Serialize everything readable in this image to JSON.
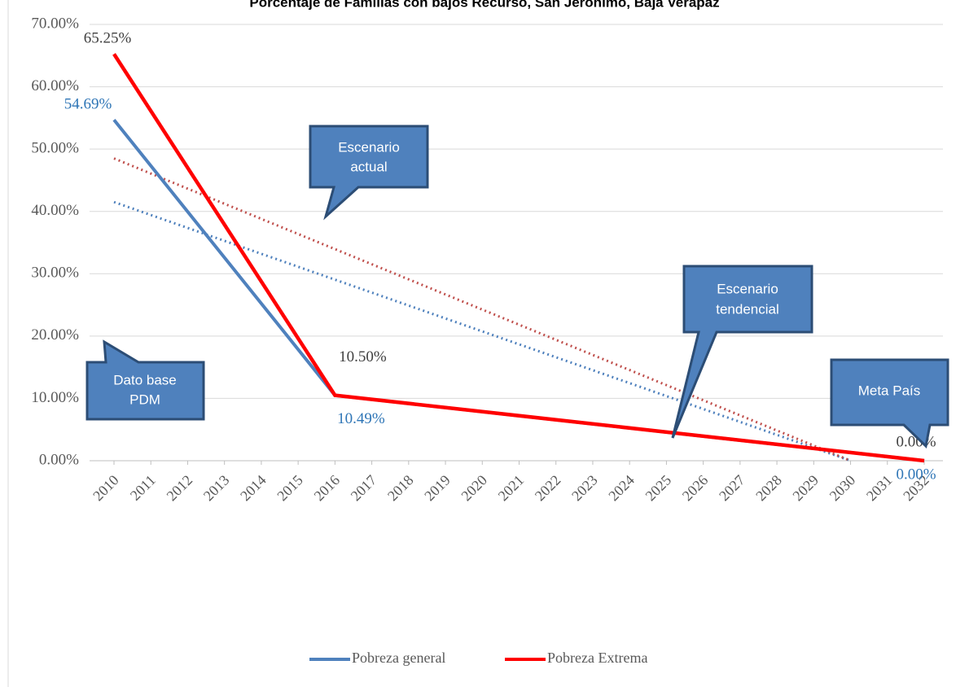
{
  "chart_data": {
    "type": "line",
    "title": "Porcentaje de Familias con bajos Recurso, San Jerónimo, Baja Verapaz",
    "x": [
      2010,
      2016,
      2032
    ],
    "xlim": [
      2010,
      2032
    ],
    "xticks": [
      2010,
      2011,
      2012,
      2013,
      2014,
      2015,
      2016,
      2017,
      2018,
      2019,
      2020,
      2021,
      2022,
      2023,
      2024,
      2025,
      2026,
      2027,
      2028,
      2029,
      2030,
      2031,
      2032
    ],
    "ylim": [
      0,
      70
    ],
    "yticks": [
      {
        "value": 0,
        "label": "0.00%"
      },
      {
        "value": 10,
        "label": "10.00%"
      },
      {
        "value": 20,
        "label": "20.00%"
      },
      {
        "value": 30,
        "label": "30.00%"
      },
      {
        "value": 40,
        "label": "40.00%"
      },
      {
        "value": 50,
        "label": "50.00%"
      },
      {
        "value": 60,
        "label": "60.00%"
      },
      {
        "value": 70,
        "label": "70.00%"
      }
    ],
    "grid": true,
    "legend": "bottom",
    "series": [
      {
        "name": "Pobreza general",
        "color": "#4f81bd",
        "values": [
          54.69,
          10.49,
          0
        ],
        "value_labels": [
          "54.69%",
          "10.49%",
          "0.00%"
        ],
        "label_color": "#2e75b6"
      },
      {
        "name": "Pobreza Extrema",
        "color": "#ff0000",
        "values": [
          65.25,
          10.5,
          0
        ],
        "value_labels": [
          "65.25%",
          "10.50%",
          "0.00%"
        ],
        "label_color": "#404040"
      }
    ],
    "trendlines": [
      {
        "color": "#4f81bd",
        "x": [
          2010,
          2030
        ],
        "values": [
          41.5,
          0
        ]
      },
      {
        "color": "#c0504d",
        "x": [
          2010,
          2030
        ],
        "values": [
          48.5,
          0
        ]
      }
    ],
    "annotations": [
      {
        "lines": [
          "Escenario",
          "actual"
        ]
      },
      {
        "lines": [
          "Escenario",
          "tendencial"
        ]
      },
      {
        "lines": [
          "Dato base",
          "PDM"
        ]
      },
      {
        "lines": [
          "Meta  País"
        ]
      }
    ]
  }
}
